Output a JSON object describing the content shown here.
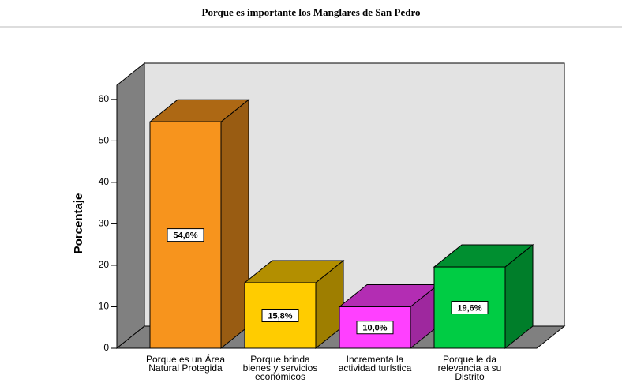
{
  "chart_data": {
    "type": "bar3d",
    "title": "Porque es importante los Manglares de San Pedro",
    "y_label": "Porcentaje",
    "categories": [
      "Porque es un Área\nNatural Protegida",
      "Porque brinda\nbienes y servicios\neconómicos",
      "Incrementa la\nactividad turística",
      "Porque le da\nrelevancia a su\nDistrito"
    ],
    "values": [
      54.6,
      15.8,
      10.0,
      19.6
    ],
    "value_labels": [
      "54,6%",
      "15,8%",
      "10,0%",
      "19,6%"
    ],
    "colors": [
      "#f7941d",
      "#ffcc00",
      "#ff40ff",
      "#00cc44"
    ],
    "ylim": [
      0,
      63.4
    ],
    "yticks": [
      0,
      10,
      20,
      30,
      40,
      50,
      60
    ]
  }
}
